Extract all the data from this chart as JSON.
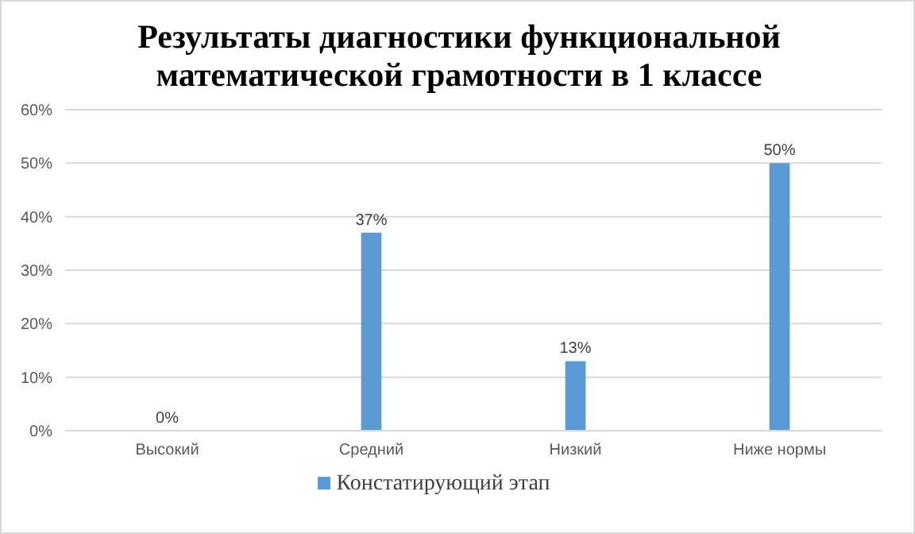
{
  "chart_data": {
    "type": "bar",
    "title": "Результаты диагностики функциональной математической грамотности в 1 классе",
    "categories": [
      "Высокий",
      "Средний",
      "Низкий",
      "Ниже нормы"
    ],
    "series": [
      {
        "name": "Констатирующий этап",
        "color": "#5b9bd5",
        "values": [
          0,
          37,
          13,
          50
        ],
        "value_labels": [
          "0%",
          "37%",
          "13%",
          "50%"
        ]
      }
    ],
    "ylim": [
      0,
      60
    ],
    "yticks": [
      {
        "value": 0,
        "label": "0%"
      },
      {
        "value": 10,
        "label": "10%"
      },
      {
        "value": 20,
        "label": "20%"
      },
      {
        "value": 30,
        "label": "30%"
      },
      {
        "value": 40,
        "label": "40%"
      },
      {
        "value": 50,
        "label": "50%"
      },
      {
        "value": 60,
        "label": "60%"
      }
    ],
    "grid": "y",
    "legend": "bottom"
  }
}
